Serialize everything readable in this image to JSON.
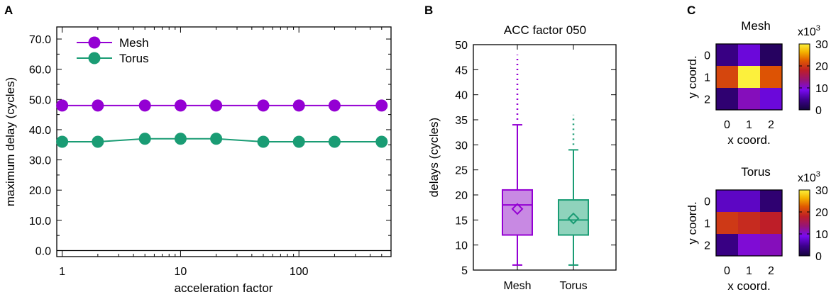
{
  "panels": {
    "a": {
      "letter": "A"
    },
    "b": {
      "letter": "B"
    },
    "c": {
      "letter": "C"
    }
  },
  "colors": {
    "mesh": "#9400d3",
    "torus": "#1a9c74",
    "mesh_fill": "#c889e3",
    "torus_fill": "#8fd3bc"
  },
  "chart_data": [
    {
      "id": "A",
      "type": "line",
      "x_scale": "log",
      "xlabel": "acceleration factor",
      "ylabel": "maximum delay (cycles)",
      "xlim": [
        0.9,
        600
      ],
      "ylim": [
        -2,
        74
      ],
      "x_ticks": [
        {
          "v": 1,
          "label": "1"
        },
        {
          "v": 10,
          "label": "10"
        },
        {
          "v": 100,
          "label": "100"
        }
      ],
      "y_ticks": [
        {
          "v": 0,
          "label": "0.0"
        },
        {
          "v": 10,
          "label": "10.0"
        },
        {
          "v": 20,
          "label": "20.0"
        },
        {
          "v": 30,
          "label": "30.0"
        },
        {
          "v": 40,
          "label": "40.0"
        },
        {
          "v": 50,
          "label": "50.0"
        },
        {
          "v": 60,
          "label": "60.0"
        },
        {
          "v": 70,
          "label": "70.0"
        }
      ],
      "legend_position": "top-left",
      "series": [
        {
          "name": "Mesh",
          "color": "#9400d3",
          "x": [
            1,
            2,
            5,
            10,
            20,
            50,
            100,
            200,
            500
          ],
          "values": [
            48,
            48,
            48,
            48,
            48,
            48,
            48,
            48,
            48
          ]
        },
        {
          "name": "Torus",
          "color": "#1a9c74",
          "x": [
            1,
            2,
            5,
            10,
            20,
            50,
            100,
            200,
            500
          ],
          "values": [
            36,
            36,
            37,
            37,
            37,
            36,
            36,
            36,
            36
          ]
        }
      ]
    },
    {
      "id": "B",
      "type": "box",
      "title": "ACC factor 050",
      "ylabel": "delays (cycles)",
      "ylim": [
        5,
        50
      ],
      "y_ticks": [
        5,
        10,
        15,
        20,
        25,
        30,
        35,
        40,
        45,
        50
      ],
      "categories": [
        "Mesh",
        "Torus"
      ],
      "boxes": [
        {
          "name": "Mesh",
          "whisker_low": 6,
          "q1": 12,
          "median": 18,
          "q3": 21,
          "whisker_high": 34,
          "mean": 17.2,
          "outliers_from": 35,
          "outliers_to": 48
        },
        {
          "name": "Torus",
          "whisker_low": 6,
          "q1": 12,
          "median": 15,
          "q3": 19,
          "whisker_high": 29,
          "mean": 15.3,
          "outliers_from": 30,
          "outliers_to": 36
        }
      ]
    },
    {
      "id": "C",
      "type": "heatmap",
      "colorbar_label": "x10",
      "colorbar_exp": "3",
      "colorbar_ticks": [
        0,
        10,
        20,
        30
      ],
      "xlabel": "x coord.",
      "ylabel": "y coord.",
      "x_ticks": [
        "0",
        "1",
        "2"
      ],
      "y_ticks": [
        "0",
        "1",
        "2"
      ],
      "maps": [
        {
          "title": "Mesh",
          "values": [
            [
              4,
              8,
              2
            ],
            [
              21,
              30,
              22
            ],
            [
              3,
              11,
              8
            ]
          ]
        },
        {
          "title": "Torus",
          "values": [
            [
              7,
              7,
              3
            ],
            [
              20,
              19,
              18
            ],
            [
              4,
              10,
              11
            ]
          ]
        }
      ]
    }
  ]
}
